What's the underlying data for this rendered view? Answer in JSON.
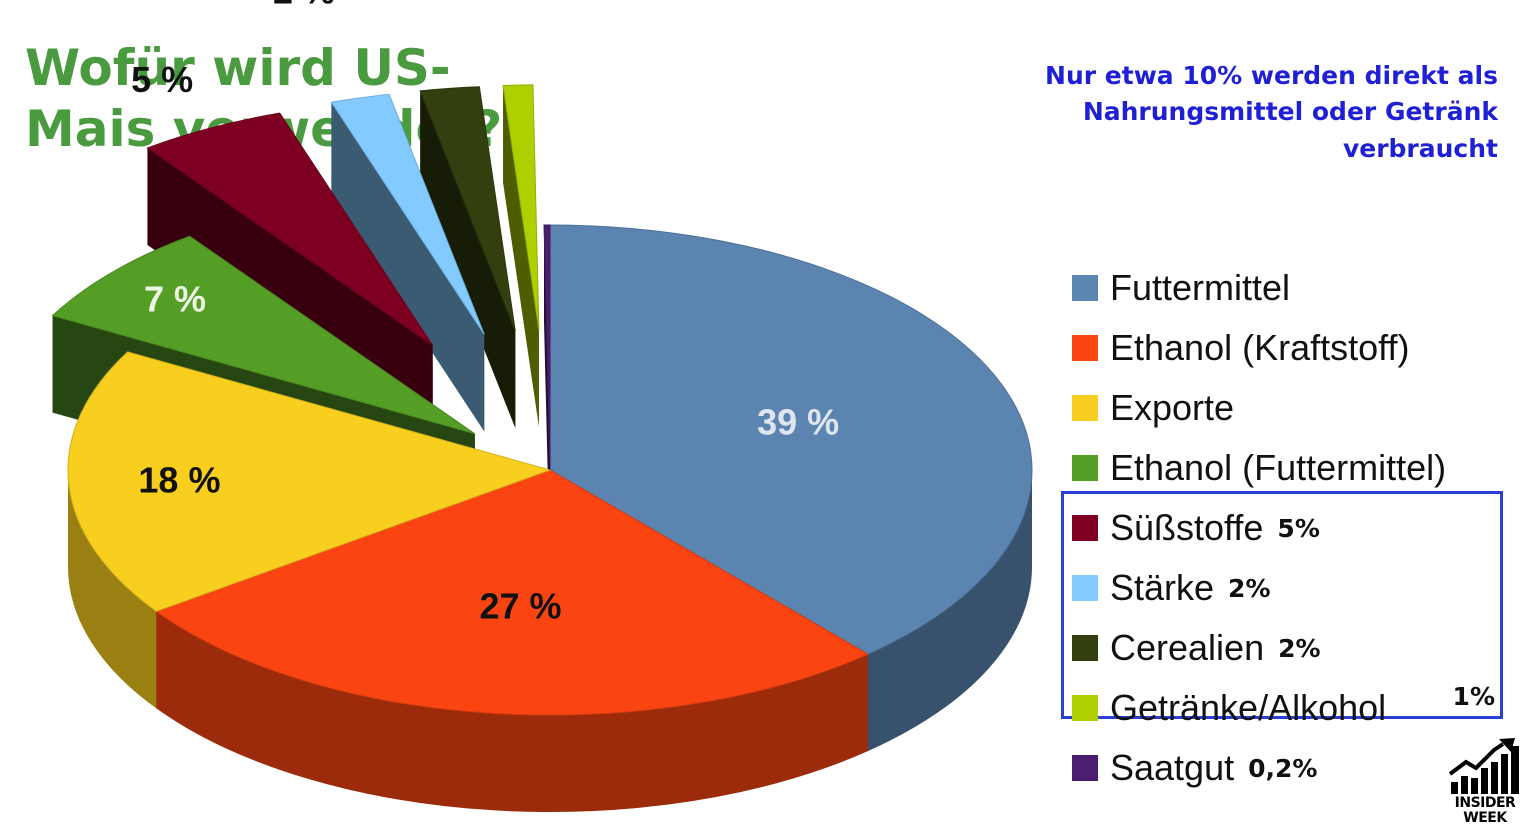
{
  "title": "Wofür wird US-Mais verwendet?",
  "note": "Nur etwa 10% werden direkt als Nahrungsmittel oder Getränk verbraucht",
  "logo_text": "INSIDER WEEK",
  "logo_icon": "rising-chart-icon",
  "colors": {
    "title": "#4a9a3f",
    "note": "#1f1fd6",
    "box": "#2a3fd8"
  },
  "chart_data": {
    "type": "pie",
    "style": "3d-exploded",
    "legend_placement": "right",
    "slices": [
      {
        "label": "Futtermittel",
        "value": 39,
        "display": "39 %",
        "legend_value": "",
        "color": "#5b84b1",
        "label_color": "#dfe5ee"
      },
      {
        "label": "Ethanol (Kraftstoff)",
        "value": 27,
        "display": "27 %",
        "legend_value": "",
        "color": "#fa4512",
        "label_color": "#111111"
      },
      {
        "label": "Exporte",
        "value": 18,
        "display": "18 %",
        "legend_value": "",
        "color": "#f8cf1e",
        "label_color": "#111111"
      },
      {
        "label": "Ethanol (Futtermittel)",
        "value": 7,
        "display": "7 %",
        "legend_value": "",
        "color": "#559e25",
        "label_color": "#eef5e6"
      },
      {
        "label": "Süßstoffe",
        "value": 5,
        "display": "5 %",
        "legend_value": "5%",
        "color": "#7d0022",
        "label_color": "#111111"
      },
      {
        "label": "Stärke",
        "value": 2,
        "display": "2 %",
        "legend_value": "2%",
        "color": "#83caff",
        "label_color": "#111111"
      },
      {
        "label": "Cerealien",
        "value": 2,
        "display": "2 %",
        "legend_value": "2%",
        "color": "#333f0e",
        "label_color": "#111111"
      },
      {
        "label": "Getränke/Alkohol",
        "value": 1,
        "display": "1 %",
        "legend_value": "1%",
        "color": "#aecf00",
        "label_color": "#111111"
      },
      {
        "label": "Saatgut",
        "value": 0.2,
        "display": "",
        "legend_value": "0,2%",
        "color": "#4b1f6f",
        "label_color": "#111111"
      }
    ]
  }
}
